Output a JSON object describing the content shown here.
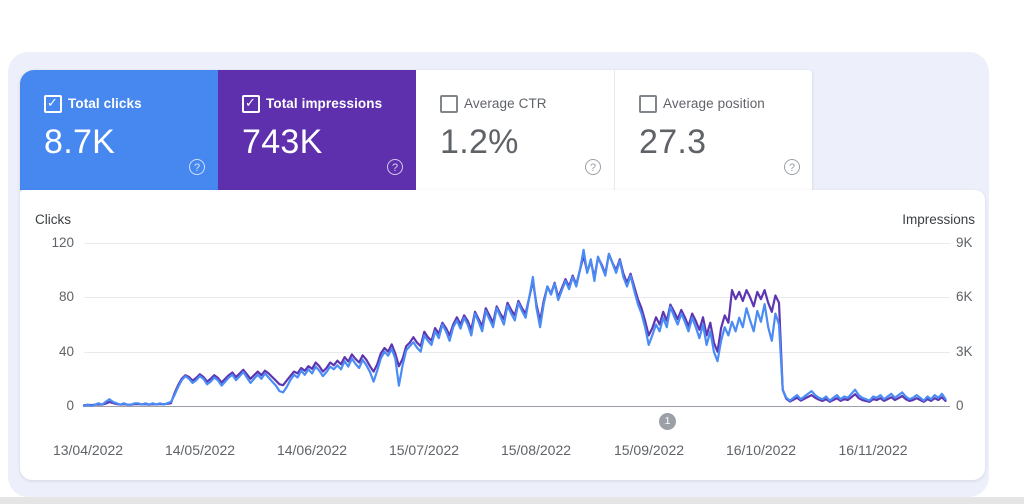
{
  "metrics_cards": [
    {
      "label": "Total clicks",
      "value": "8.7K",
      "checked": true,
      "bg": "#4687f0",
      "fg": "#ffffff"
    },
    {
      "label": "Total impressions",
      "value": "743K",
      "checked": true,
      "bg": "#5e30ad",
      "fg": "#ffffff"
    },
    {
      "label": "Average CTR",
      "value": "1.2%",
      "checked": false,
      "bg": "#ffffff",
      "fg": "#5f6368"
    },
    {
      "label": "Average position",
      "value": "27.3",
      "checked": false,
      "bg": "#ffffff",
      "fg": "#5f6368"
    }
  ],
  "help_icon_glyph": "?",
  "chart": {
    "left_axis_title": "Clicks",
    "right_axis_title": "Impressions",
    "left_ticks": [
      "120",
      "80",
      "40",
      "0"
    ],
    "right_ticks": [
      "9K",
      "6K",
      "3K",
      "0"
    ],
    "x_labels": [
      "13/04/2022",
      "14/05/2022",
      "14/06/2022",
      "15/07/2022",
      "15/08/2022",
      "15/09/2022",
      "16/10/2022",
      "16/11/2022"
    ],
    "annotation_marker": "1"
  },
  "chart_data": {
    "type": "line",
    "x_unit": "day",
    "date_range": [
      "13/04/2022",
      "07/12/2022"
    ],
    "x_tick_labels": [
      "13/04/2022",
      "14/05/2022",
      "14/06/2022",
      "15/07/2022",
      "15/08/2022",
      "15/09/2022",
      "16/10/2022",
      "16/11/2022"
    ],
    "left_axis": {
      "title": "Clicks",
      "max": 120,
      "ticks": [
        0,
        40,
        80,
        120
      ]
    },
    "right_axis": {
      "title": "Impressions",
      "max": 9000,
      "ticks": [
        0,
        3000,
        6000,
        9000
      ]
    },
    "grid": "horizontal",
    "legend_position": "none",
    "series": [
      {
        "name": "Total clicks",
        "axis": "left",
        "color": "#4a8cf4",
        "values": [
          0,
          1,
          0,
          1,
          2,
          1,
          3,
          5,
          3,
          2,
          1,
          2,
          1,
          1,
          2,
          2,
          1,
          2,
          1,
          2,
          1,
          2,
          1,
          2,
          3,
          8,
          14,
          19,
          22,
          20,
          17,
          19,
          22,
          20,
          16,
          18,
          21,
          19,
          15,
          18,
          21,
          23,
          19,
          22,
          25,
          21,
          17,
          20,
          23,
          20,
          24,
          21,
          18,
          15,
          11,
          10,
          14,
          19,
          23,
          21,
          26,
          23,
          27,
          24,
          29,
          26,
          22,
          25,
          29,
          27,
          30,
          27,
          33,
          29,
          35,
          31,
          28,
          34,
          30,
          25,
          18,
          26,
          35,
          40,
          37,
          42,
          35,
          15,
          30,
          41,
          44,
          47,
          43,
          40,
          52,
          48,
          45,
          55,
          50,
          60,
          55,
          48,
          58,
          63,
          57,
          65,
          60,
          52,
          68,
          62,
          55,
          70,
          64,
          58,
          72,
          66,
          60,
          74,
          68,
          63,
          76,
          70,
          65,
          80,
          95,
          72,
          58,
          75,
          88,
          82,
          90,
          78,
          85,
          92,
          86,
          95,
          88,
          100,
          115,
          98,
          108,
          92,
          110,
          103,
          96,
          112,
          105,
          98,
          107,
          95,
          88,
          96,
          85,
          75,
          68,
          58,
          45,
          52,
          60,
          55,
          65,
          58,
          73,
          66,
          60,
          68,
          62,
          55,
          65,
          58,
          50,
          60,
          45,
          55,
          40,
          33,
          48,
          58,
          52,
          62,
          55,
          65,
          58,
          72,
          63,
          55,
          70,
          62,
          75,
          58,
          48,
          68,
          60,
          12,
          6,
          4,
          6,
          8,
          5,
          7,
          9,
          11,
          8,
          6,
          5,
          7,
          4,
          6,
          8,
          5,
          7,
          6,
          9,
          12,
          8,
          6,
          5,
          4,
          7,
          6,
          8,
          5,
          7,
          9,
          6,
          8,
          10,
          7,
          5,
          6,
          8,
          6,
          4,
          7,
          5,
          8,
          6,
          9,
          5
        ]
      },
      {
        "name": "Total impressions",
        "axis": "right",
        "color": "#5e35b1",
        "values": [
          40,
          60,
          50,
          70,
          90,
          80,
          130,
          220,
          160,
          110,
          80,
          100,
          70,
          80,
          100,
          110,
          90,
          100,
          80,
          100,
          90,
          110,
          100,
          120,
          150,
          700,
          1150,
          1500,
          1700,
          1600,
          1400,
          1550,
          1750,
          1600,
          1350,
          1500,
          1700,
          1550,
          1300,
          1500,
          1700,
          1850,
          1600,
          1800,
          2000,
          1750,
          1500,
          1700,
          1900,
          1700,
          1950,
          1800,
          1600,
          1400,
          1200,
          1150,
          1400,
          1650,
          1900,
          1800,
          2100,
          1950,
          2200,
          2050,
          2400,
          2200,
          1900,
          2100,
          2400,
          2250,
          2500,
          2300,
          2700,
          2450,
          2850,
          2600,
          2400,
          2800,
          2550,
          2200,
          1900,
          2300,
          2900,
          3200,
          3000,
          3400,
          2900,
          2200,
          2600,
          3300,
          3500,
          3800,
          3500,
          3300,
          4100,
          3800,
          3600,
          4300,
          4000,
          4600,
          4300,
          3900,
          4500,
          4900,
          4500,
          5000,
          4700,
          4200,
          5200,
          4800,
          4400,
          5400,
          5000,
          4600,
          5500,
          5100,
          4800,
          5700,
          5300,
          5000,
          5800,
          5400,
          5100,
          6000,
          6900,
          5600,
          4700,
          5800,
          6600,
          6200,
          6800,
          6000,
          6500,
          7000,
          6600,
          7200,
          6700,
          7500,
          8300,
          7400,
          8000,
          7100,
          8200,
          7800,
          7300,
          8400,
          7900,
          7500,
          8100,
          7300,
          6800,
          7300,
          6600,
          5900,
          5400,
          4700,
          3900,
          4300,
          4900,
          4500,
          5200,
          4700,
          5600,
          5200,
          4800,
          5300,
          4900,
          4400,
          5100,
          4700,
          4200,
          4900,
          3900,
          4600,
          3500,
          3000,
          4300,
          5000,
          4600,
          6400,
          5900,
          6300,
          5800,
          6400,
          6000,
          5500,
          6300,
          5900,
          6400,
          5700,
          5200,
          6100,
          5700,
          900,
          400,
          250,
          350,
          450,
          300,
          400,
          500,
          600,
          450,
          350,
          280,
          380,
          230,
          330,
          430,
          280,
          380,
          330,
          480,
          650,
          430,
          330,
          280,
          230,
          380,
          330,
          430,
          280,
          380,
          480,
          330,
          430,
          550,
          380,
          280,
          330,
          430,
          330,
          230,
          380,
          280,
          430,
          330,
          480,
          280
        ]
      }
    ]
  },
  "colors": {
    "panel_bg": "#edf0fa",
    "grid_line": "#e8eaed",
    "axis_line": "#9aa0a6"
  }
}
